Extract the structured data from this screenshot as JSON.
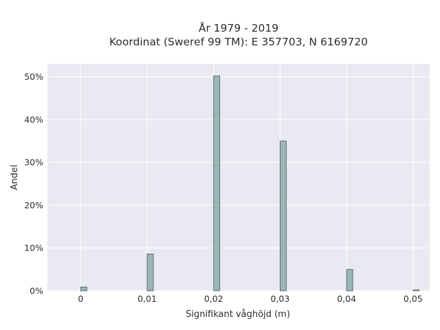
{
  "chart_data": {
    "type": "bar",
    "title": "År 1979 - 2019",
    "subtitle": "Koordinat (Sweref 99 TM): E 357703, N 6169720",
    "xlabel": "Signifikant våghöjd (m)",
    "ylabel": "Andel",
    "x": [
      0,
      0.01,
      0.02,
      0.03,
      0.04,
      0.05
    ],
    "values": [
      0.9,
      8.6,
      50.2,
      35.0,
      5.0,
      0.2
    ],
    "xlim": [
      -0.005,
      0.0525
    ],
    "ylim": [
      0,
      53
    ],
    "xticks": [
      0,
      0.01,
      0.02,
      0.03,
      0.04,
      0.05
    ],
    "xtick_labels": [
      "0",
      "0,01",
      "0,02",
      "0,03",
      "0,04",
      "0,05"
    ],
    "yticks": [
      0,
      10,
      20,
      30,
      40,
      50
    ],
    "ytick_labels": [
      "0%",
      "10%",
      "20%",
      "30%",
      "40%",
      "50%"
    ],
    "grid": true,
    "colors": {
      "plot_background": "#e9e9f1",
      "grid": "#ffffff",
      "bar_fill": "#9cb5b5",
      "bar_edge": "#4a5a5a"
    }
  }
}
